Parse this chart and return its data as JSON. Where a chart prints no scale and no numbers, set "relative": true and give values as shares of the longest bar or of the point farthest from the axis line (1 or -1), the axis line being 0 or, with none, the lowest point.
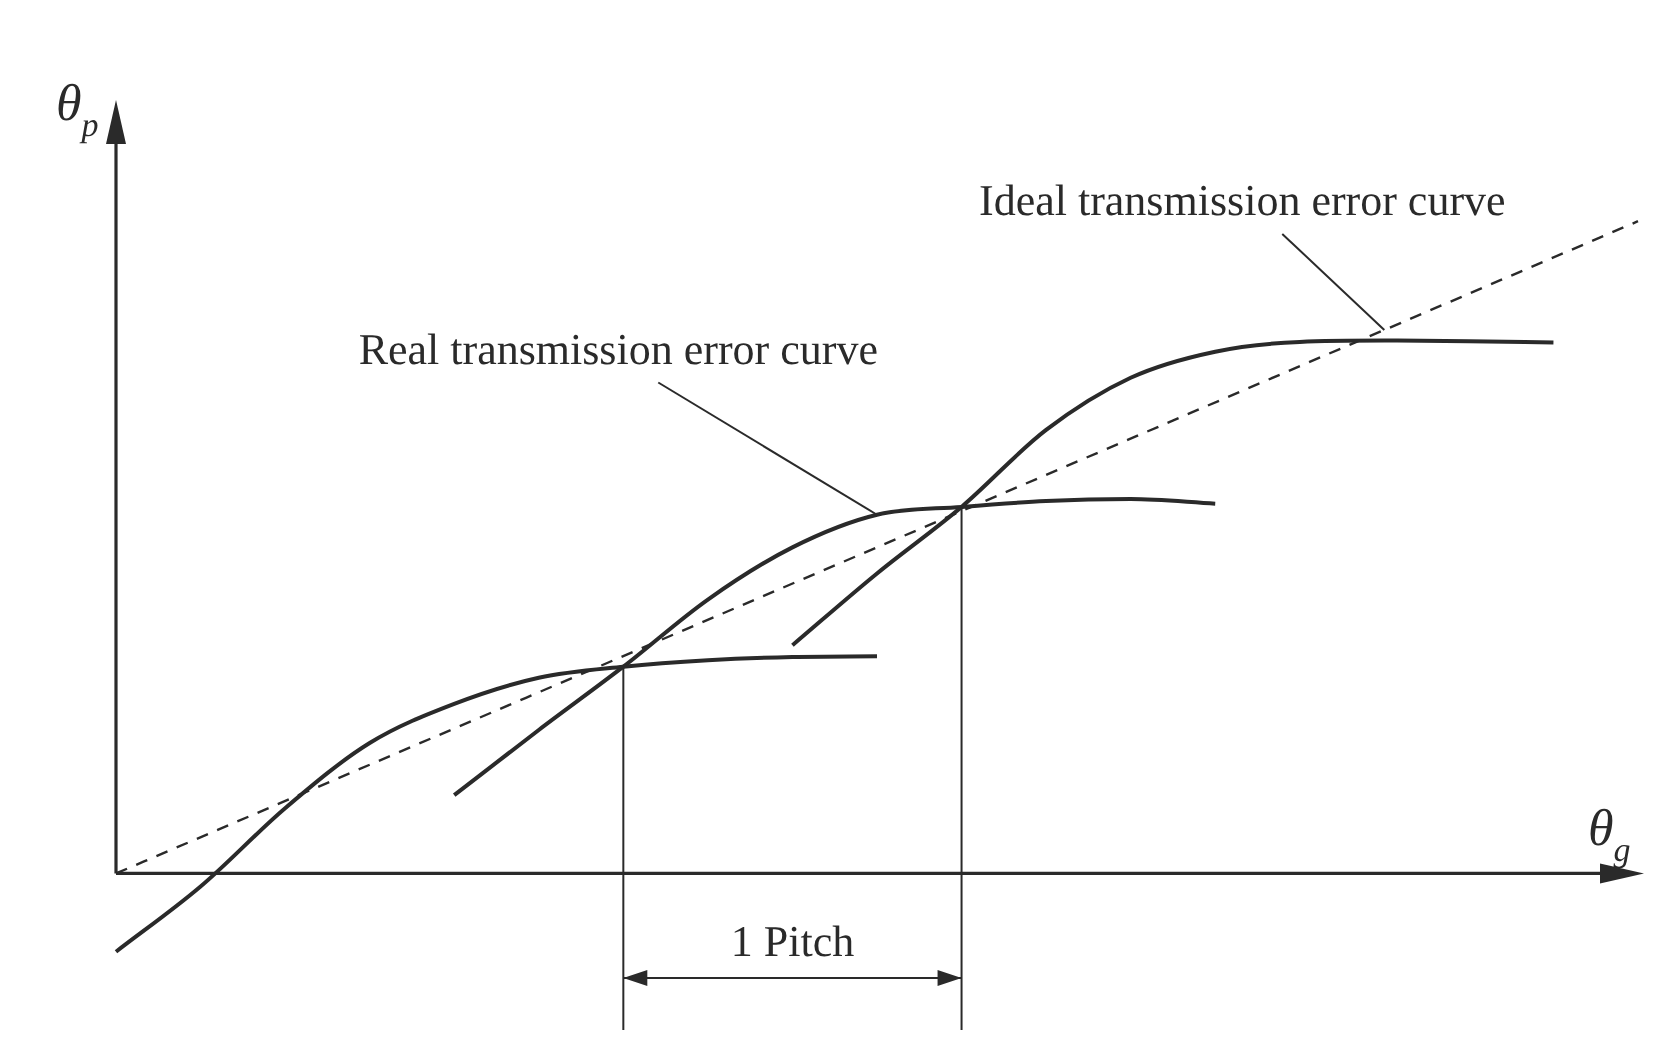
{
  "chart_data": {
    "type": "line",
    "relative": true,
    "xlabel": "θ$_{g}$",
    "ylabel": "θ$_{p}$",
    "legend": false,
    "marker": "none",
    "categories": [
      null,
      null,
      null,
      null,
      null,
      null,
      null,
      null,
      null,
      null,
      null,
      null,
      null,
      null,
      null,
      null,
      null,
      null,
      null
    ],
    "series": [
      {
        "color": "#2a2a2a",
        "values": [
          -0.12,
          -0.02,
          0.1,
          0.2,
          0.26,
          0.3,
          0.317,
          0.327,
          0.332,
          0.333,
          null,
          null,
          null,
          null,
          null,
          null,
          null,
          null,
          null
        ]
      },
      {
        "color": "#2a2a2a",
        "values": [
          null,
          null,
          null,
          null,
          0.12,
          0.22,
          0.317,
          0.42,
          0.5,
          0.55,
          0.562,
          0.571,
          0.574,
          0.567,
          null,
          null,
          null,
          null,
          null
        ]
      },
      {
        "color": "#2a2a2a",
        "values": [
          null,
          null,
          null,
          null,
          null,
          null,
          null,
          null,
          0.35,
          0.46,
          0.562,
          0.68,
          0.76,
          0.8,
          0.815,
          0.817,
          0.816,
          0.814,
          null
        ]
      },
      {
        "color": "#2a2a2a",
        "line_style": "dashed",
        "values": [
          0,
          null,
          null,
          null,
          null,
          null,
          null,
          null,
          null,
          null,
          null,
          null,
          null,
          null,
          null,
          null,
          null,
          null,
          1
        ]
      }
    ],
    "annotations": [
      "Ideal transmission error curve",
      "Real transmission error curve",
      "1 Pitch"
    ]
  }
}
